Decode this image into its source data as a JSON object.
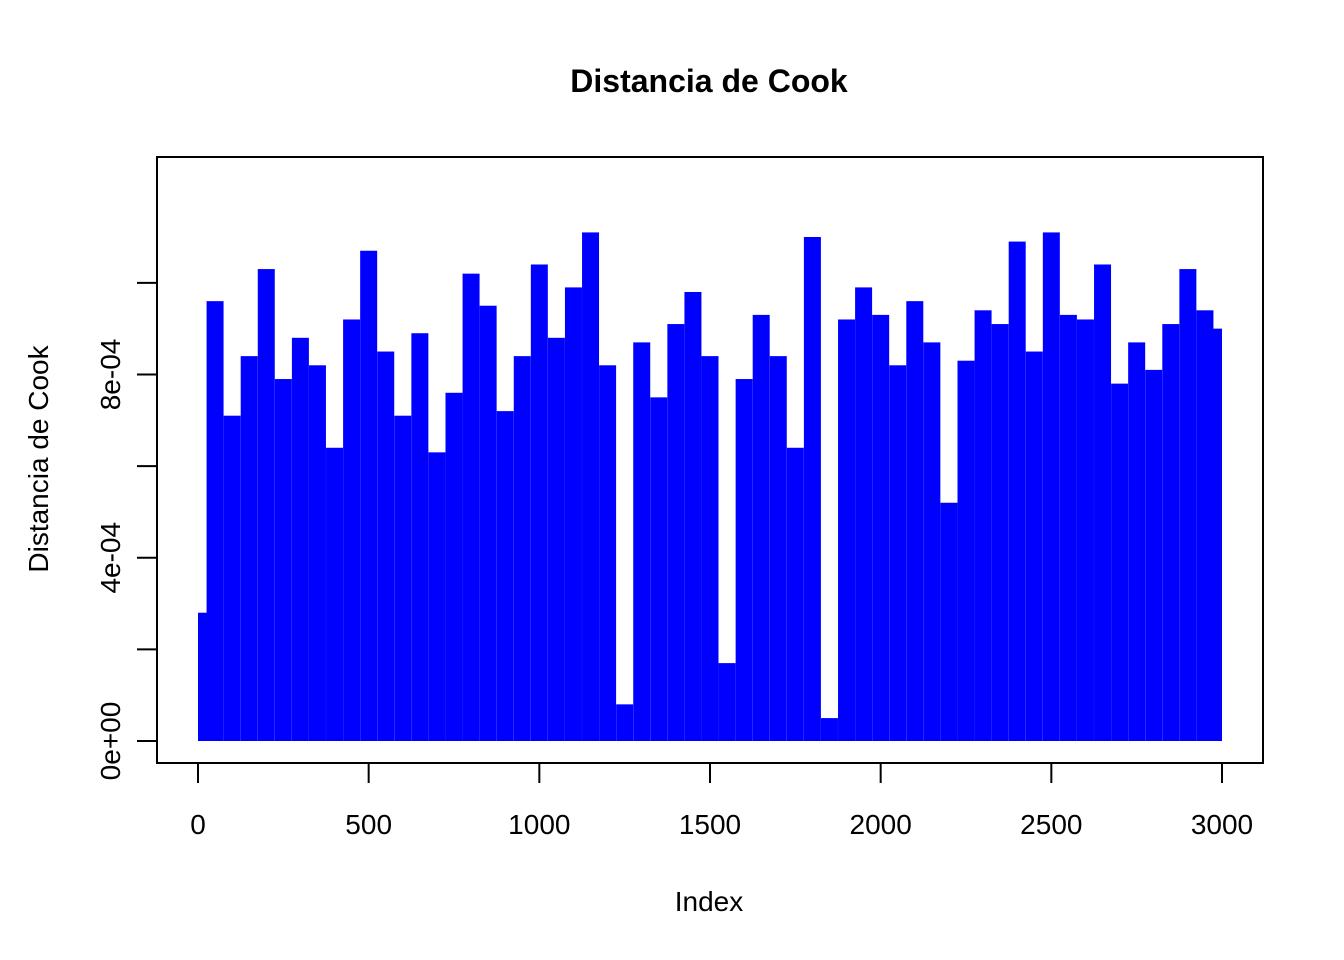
{
  "colors": {
    "bars": "#0000FF",
    "axis": "#000000",
    "background": "#FFFFFF"
  },
  "chart_data": {
    "type": "bar",
    "title": "Distancia de Cook",
    "xlabel": "Index",
    "ylabel": "Distancia de Cook",
    "xlim": [
      0,
      3000
    ],
    "ylim": [
      0,
      0.0011
    ],
    "x_ticks": [
      0,
      500,
      1000,
      1500,
      2000,
      2500,
      3000
    ],
    "x_tick_labels": [
      "0",
      "500",
      "1000",
      "1500",
      "2000",
      "2500",
      "3000"
    ],
    "y_ticks": [
      0,
      0.0002,
      0.0004,
      0.0006,
      0.0008,
      0.001
    ],
    "y_tick_labels": [
      "0e+00",
      "",
      "4e-04",
      "",
      "8e-04",
      ""
    ],
    "grid": false,
    "legend": "none",
    "series": [
      {
        "x": [
          1,
          50,
          100,
          150,
          200,
          250,
          300,
          350,
          400,
          450,
          500,
          550,
          600,
          650,
          700,
          750,
          800,
          850,
          900,
          950,
          1000,
          1050,
          1100,
          1150,
          1200,
          1250,
          1300,
          1350,
          1400,
          1450,
          1500,
          1550,
          1600,
          1650,
          1700,
          1750,
          1800,
          1850,
          1900,
          1950,
          2000,
          2050,
          2100,
          2150,
          2200,
          2250,
          2300,
          2350,
          2400,
          2450,
          2500,
          2550,
          2600,
          2650,
          2700,
          2750,
          2800,
          2850,
          2900,
          2950,
          3000
        ],
        "values": [
          0.00028,
          0.00096,
          0.00071,
          0.00084,
          0.00103,
          0.00079,
          0.00088,
          0.00082,
          0.00064,
          0.00092,
          0.00107,
          0.00085,
          0.00071,
          0.00089,
          0.00063,
          0.00076,
          0.00102,
          0.00095,
          0.00072,
          0.00084,
          0.00104,
          0.00088,
          0.00099,
          0.00111,
          0.00082,
          8e-05,
          0.00087,
          0.00075,
          0.00091,
          0.00098,
          0.00084,
          0.00017,
          0.00079,
          0.00093,
          0.00084,
          0.00064,
          0.0011,
          5e-05,
          0.00092,
          0.00099,
          0.00093,
          0.00082,
          0.00096,
          0.00087,
          0.00052,
          0.00083,
          0.00094,
          0.00091,
          0.00109,
          0.00085,
          0.00111,
          0.00093,
          0.00092,
          0.00104,
          0.00078,
          0.00087,
          0.00081,
          0.00091,
          0.00103,
          0.00094,
          0.0009
        ]
      }
    ]
  }
}
